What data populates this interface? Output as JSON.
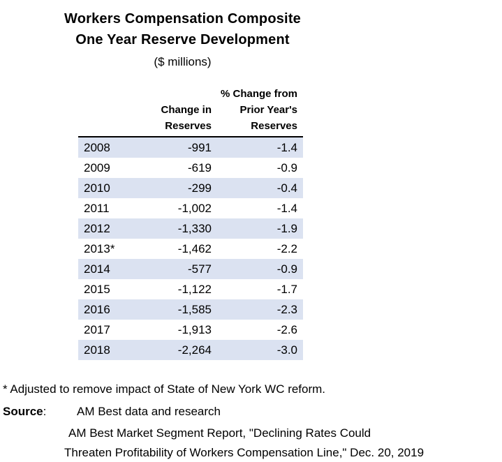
{
  "title": {
    "line1": "Workers Compensation Composite",
    "line2": "One Year Reserve Development",
    "subtitle": "($ millions)"
  },
  "table": {
    "header_col1": "",
    "header_col2": "Change in\nReserves",
    "header_col3": "% Change from\nPrior Year's\nReserves"
  },
  "chart_data": {
    "type": "table",
    "title": "Workers Compensation Composite One Year Reserve Development ($ millions)",
    "columns": [
      "Year",
      "Change in Reserves",
      "% Change from Prior Year's Reserves"
    ],
    "rows": [
      [
        "2008",
        "-991",
        "-1.4"
      ],
      [
        "2009",
        "-619",
        "-0.9"
      ],
      [
        "2010",
        "-299",
        "-0.4"
      ],
      [
        "2011",
        "-1,002",
        "-1.4"
      ],
      [
        "2012",
        "-1,330",
        "-1.9"
      ],
      [
        "2013*",
        "-1,462",
        "-2.2"
      ],
      [
        "2014",
        "-577",
        "-0.9"
      ],
      [
        "2015",
        "-1,122",
        "-1.7"
      ],
      [
        "2016",
        "-1,585",
        "-2.3"
      ],
      [
        "2017",
        "-1,913",
        "-2.6"
      ],
      [
        "2018",
        "-2,264",
        "-3.0"
      ]
    ],
    "layout": {
      "striped_rows": "first row and every other row shaded",
      "header_rule": "solid black line under column headers",
      "value_alignment": "years left-aligned, numbers right-aligned"
    }
  },
  "footnotes": {
    "asterisk_note": "* Adjusted to remove impact of State of New York WC reform.",
    "source_label": "Source",
    "source_colon": ":",
    "source_line1": "AM Best data and research",
    "source_line2": "AM Best Market Segment Report, \"Declining Rates Could",
    "source_line3": "Threaten Profitability of Workers Compensation Line,\" Dec. 20, 2019"
  },
  "colors": {
    "stripe": "#dbe2f1",
    "text": "#000000",
    "header_rule": "#000000",
    "background": "#ffffff"
  }
}
